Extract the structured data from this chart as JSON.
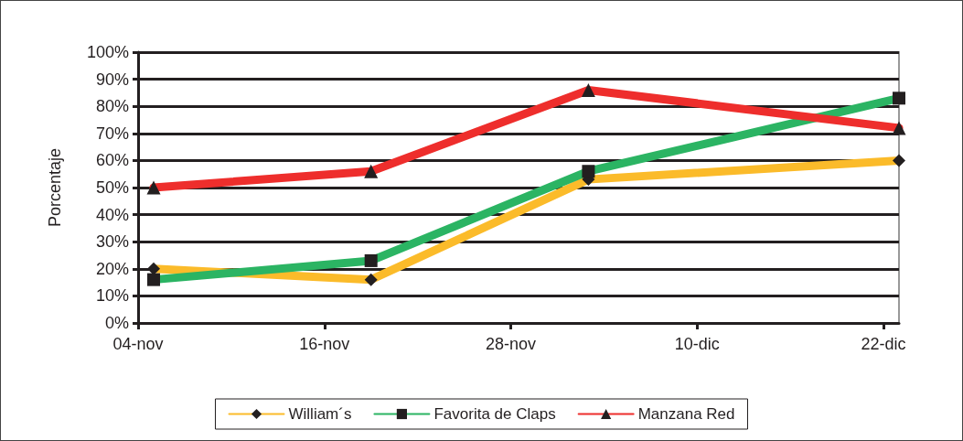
{
  "chart_data": {
    "type": "line",
    "ylabel": "Porcentaje",
    "x": [
      "--11-05",
      "--11-19",
      "--12-03",
      "--12-23"
    ],
    "xlim": [
      "--11-04",
      "--12-23"
    ],
    "xticks": [
      {
        "value": "--11-04",
        "label": "04-nov"
      },
      {
        "value": "--11-16",
        "label": "16-nov"
      },
      {
        "value": "--11-28",
        "label": "28-nov"
      },
      {
        "value": "--12-10",
        "label": "10-dic"
      },
      {
        "value": "--12-22",
        "label": "22-dic"
      }
    ],
    "ylim": [
      0,
      100
    ],
    "yticks": [
      {
        "value": 0,
        "label": "0%"
      },
      {
        "value": 10,
        "label": "10%"
      },
      {
        "value": 20,
        "label": "20%"
      },
      {
        "value": 30,
        "label": "30%"
      },
      {
        "value": 40,
        "label": "40%"
      },
      {
        "value": 50,
        "label": "50%"
      },
      {
        "value": 60,
        "label": "60%"
      },
      {
        "value": 70,
        "label": "70%"
      },
      {
        "value": 80,
        "label": "80%"
      },
      {
        "value": 90,
        "label": "90%"
      },
      {
        "value": 100,
        "label": "100%"
      }
    ],
    "grid": "y",
    "legend": "bottom",
    "line_style": "solid",
    "series": [
      {
        "name": "William´s",
        "color": "#fbbb2a",
        "marker": "diamond",
        "values": [
          20,
          16,
          53,
          60
        ]
      },
      {
        "name": "Favorita de Claps",
        "color": "#2bb463",
        "marker": "square",
        "values": [
          16,
          23,
          56,
          83
        ]
      },
      {
        "name": "Manzana Red",
        "color": "#ee2e2c",
        "marker": "triangle",
        "values": [
          50,
          56,
          86,
          72
        ]
      }
    ]
  }
}
